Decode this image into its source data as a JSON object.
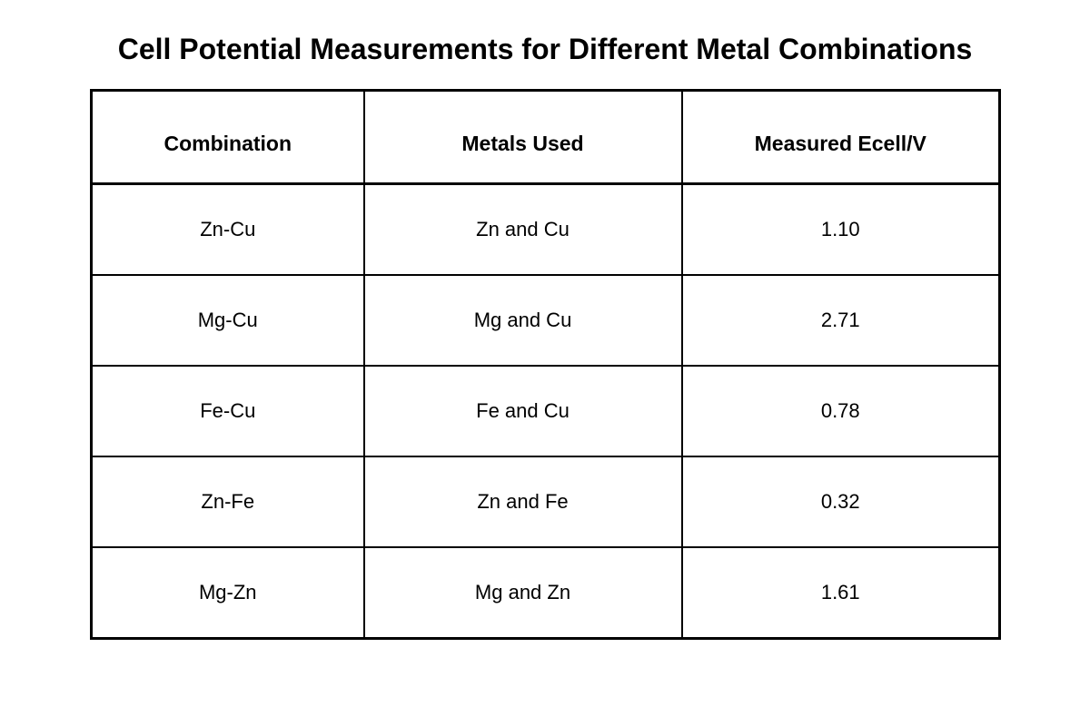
{
  "chart_data": {
    "type": "table",
    "title": "Cell Potential Measurements for Different Metal Combinations",
    "columns": [
      "Combination",
      "Metals Used",
      "Measured Ecell/V"
    ],
    "rows": [
      [
        "Zn-Cu",
        "Zn and Cu",
        "1.10"
      ],
      [
        "Mg-Cu",
        "Mg and Cu",
        "2.71"
      ],
      [
        "Fe-Cu",
        "Fe and Cu",
        "0.78"
      ],
      [
        "Zn-Fe",
        "Zn and Fe",
        "0.32"
      ],
      [
        "Mg-Zn",
        "Mg and Zn",
        "1.61"
      ]
    ]
  },
  "colors": {
    "text": "#000000",
    "border": "#000000",
    "background": "#ffffff"
  }
}
